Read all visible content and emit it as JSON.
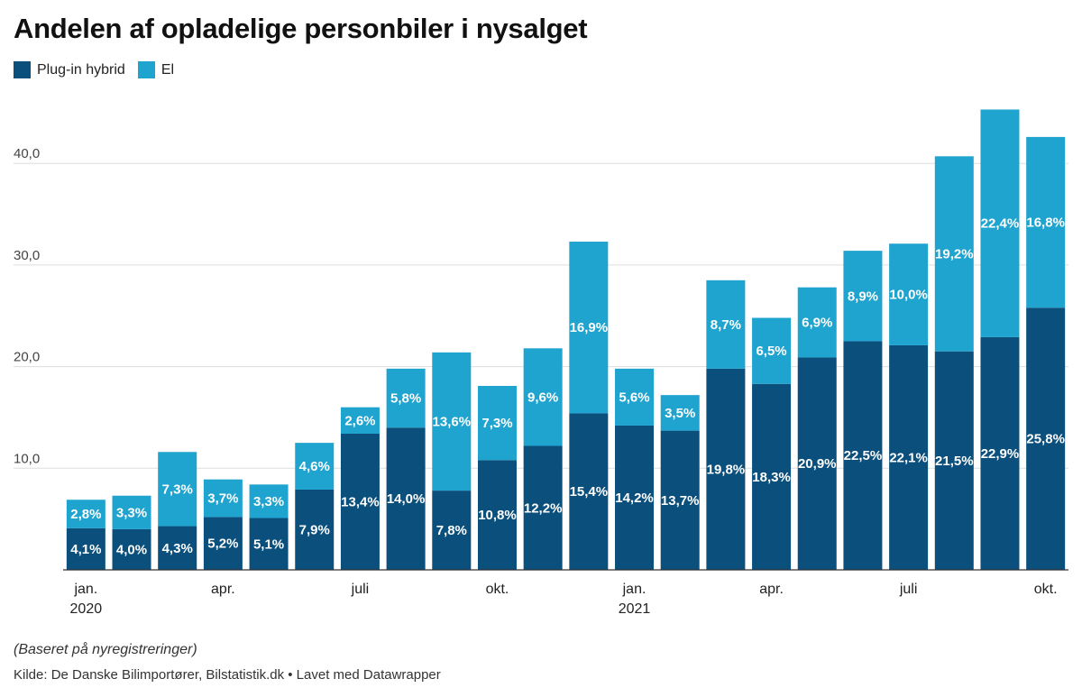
{
  "header": {
    "title": "Andelen af opladelige personbiler i nysalget"
  },
  "legend": {
    "items": [
      {
        "label": "Plug-in hybrid",
        "color": "#0b4f7c"
      },
      {
        "label": "El",
        "color": "#1fa3cf"
      }
    ]
  },
  "footer": {
    "note": "(Baseret på nyregistreringer)",
    "source": "Kilde: De Danske Bilimportører, Bilstatistik.dk • Lavet med Datawrapper"
  },
  "chart_data": {
    "type": "bar",
    "stacked": true,
    "categories": [
      "jan. 2020",
      "feb. 2020",
      "mar. 2020",
      "apr. 2020",
      "maj 2020",
      "jun. 2020",
      "juli 2020",
      "aug. 2020",
      "sep. 2020",
      "okt. 2020",
      "nov. 2020",
      "dec. 2020",
      "jan. 2021",
      "feb. 2021",
      "mar. 2021",
      "apr. 2021",
      "maj 2021",
      "jun. 2021",
      "juli 2021",
      "aug. 2021",
      "sep. 2021",
      "okt. 2021"
    ],
    "series": [
      {
        "name": "Plug-in hybrid",
        "color": "#0b4f7c",
        "values": [
          4.1,
          4.0,
          4.3,
          5.2,
          5.1,
          7.9,
          13.4,
          14.0,
          7.8,
          10.8,
          12.2,
          15.4,
          14.2,
          13.7,
          19.8,
          18.3,
          20.9,
          22.5,
          22.1,
          21.5,
          22.9,
          25.8
        ],
        "labels": [
          "4,1%",
          "4,0%",
          "4,3%",
          "5,2%",
          "5,1%",
          "7,9%",
          "13,4%",
          "14,0%",
          "7,8%",
          "10,8%",
          "12,2%",
          "15,4%",
          "14,2%",
          "13,7%",
          "19,8%",
          "18,3%",
          "20,9%",
          "22,5%",
          "22,1%",
          "21,5%",
          "22,9%",
          "25,8%"
        ]
      },
      {
        "name": "El",
        "color": "#1fa3cf",
        "values": [
          2.8,
          3.3,
          7.3,
          3.7,
          3.3,
          4.6,
          2.6,
          5.8,
          13.6,
          7.3,
          9.6,
          16.9,
          5.6,
          3.5,
          8.7,
          6.5,
          6.9,
          8.9,
          10.0,
          19.2,
          22.4,
          16.8
        ],
        "labels": [
          "2,8%",
          "3,3%",
          "7,3%",
          "3,7%",
          "3,3%",
          "4,6%",
          "2,6%",
          "5,8%",
          "13,6%",
          "7,3%",
          "9,6%",
          "16,9%",
          "5,6%",
          "3,5%",
          "8,7%",
          "6,5%",
          "6,9%",
          "8,9%",
          "10,0%",
          "19,2%",
          "22,4%",
          "16,8%"
        ]
      }
    ],
    "x_tick_labels": [
      {
        "index": 0,
        "line1": "jan.",
        "line2": "2020"
      },
      {
        "index": 3,
        "line1": "apr.",
        "line2": ""
      },
      {
        "index": 6,
        "line1": "juli",
        "line2": ""
      },
      {
        "index": 9,
        "line1": "okt.",
        "line2": ""
      },
      {
        "index": 12,
        "line1": "jan.",
        "line2": "2021"
      },
      {
        "index": 15,
        "line1": "apr.",
        "line2": ""
      },
      {
        "index": 18,
        "line1": "juli",
        "line2": ""
      },
      {
        "index": 21,
        "line1": "okt.",
        "line2": ""
      }
    ],
    "y_ticks": [
      10,
      20,
      30,
      40
    ],
    "y_tick_labels": [
      "10,0",
      "20,0",
      "30,0",
      "40,0"
    ],
    "ylim": [
      0,
      47
    ],
    "grid": true,
    "legend_position": "top-left"
  }
}
